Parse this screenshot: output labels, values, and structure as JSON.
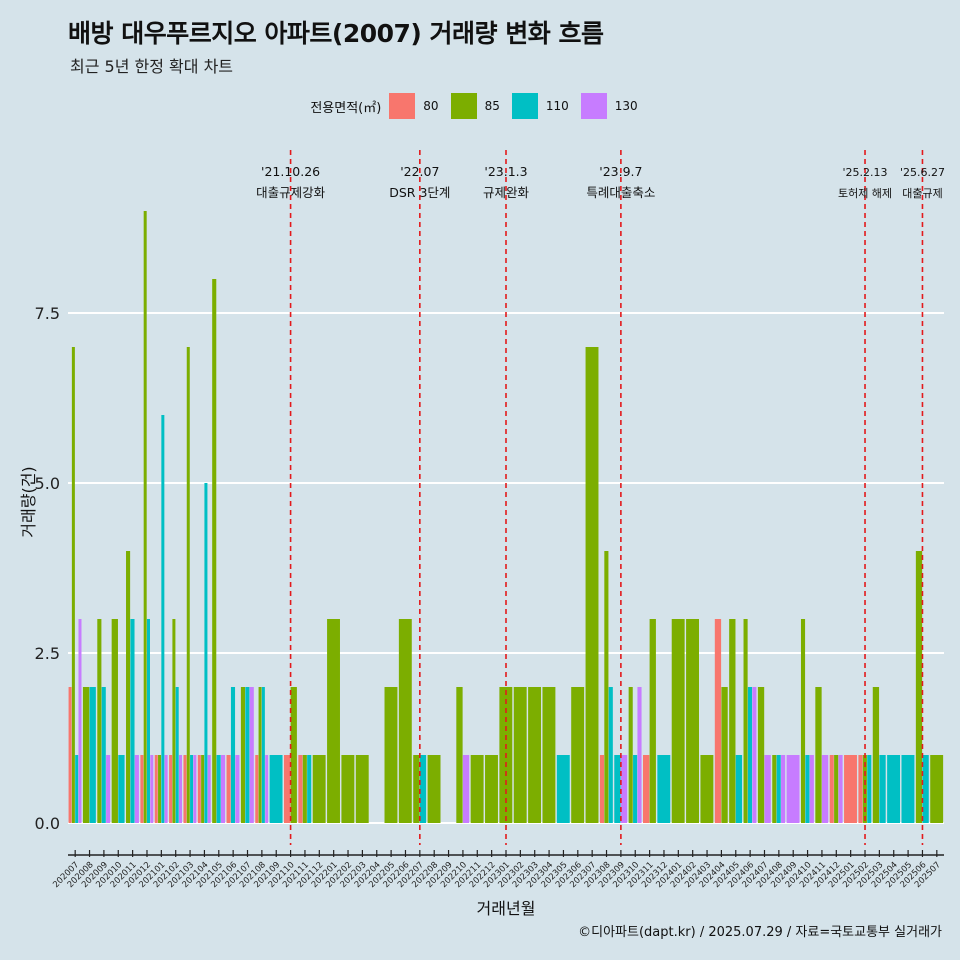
{
  "title": "배방 대우푸르지오 아파트(2007) 거래량 변화 흐름",
  "subtitle": "최근 5년 한정 확대 차트",
  "caption": "©디아파트(dapt.kr) / 2025.07.29 / 자료=국토교통부 실거래가",
  "legend": {
    "title": "전용면적(㎡)",
    "items": [
      {
        "label": "80",
        "color": "#f8766d"
      },
      {
        "label": "85",
        "color": "#7cae00"
      },
      {
        "label": "110",
        "color": "#00bfc4"
      },
      {
        "label": "130",
        "color": "#c77cff"
      }
    ]
  },
  "chart_data": {
    "type": "bar",
    "xlabel": "거래년월",
    "ylabel": "거래량(건)",
    "ylim": [
      0,
      9
    ],
    "yticks": [
      0.0,
      2.5,
      5.0,
      7.5
    ],
    "ytick_labels": [
      "0.0",
      "2.5",
      "5.0",
      "7.5"
    ],
    "grid": true,
    "legend_position": "top",
    "areas": [
      "80",
      "85",
      "110",
      "130"
    ],
    "categories": [
      "202007",
      "202008",
      "202009",
      "202010",
      "202011",
      "202012",
      "202101",
      "202102",
      "202103",
      "202104",
      "202105",
      "202106",
      "202107",
      "202108",
      "202109",
      "202110",
      "202111",
      "202112",
      "202201",
      "202202",
      "202203",
      "202204",
      "202205",
      "202206",
      "202207",
      "202208",
      "202209",
      "202210",
      "202211",
      "202212",
      "202301",
      "202302",
      "202303",
      "202304",
      "202305",
      "202306",
      "202307",
      "202308",
      "202309",
      "202310",
      "202311",
      "202312",
      "202401",
      "202402",
      "202403",
      "202404",
      "202405",
      "202406",
      "202407",
      "202408",
      "202409",
      "202410",
      "202411",
      "202412",
      "202501",
      "202502",
      "202503",
      "202504",
      "202505",
      "202506",
      "202507"
    ],
    "series": [
      {
        "name": "80",
        "values": [
          2,
          0,
          0,
          0,
          0,
          1,
          1,
          1,
          1,
          1,
          0,
          1,
          0,
          1,
          0,
          1,
          1,
          0,
          0,
          0,
          0,
          0,
          0,
          0,
          0,
          0,
          0,
          0,
          0,
          0,
          0,
          0,
          0,
          0,
          0,
          0,
          0,
          1,
          0,
          0,
          1,
          0,
          0,
          0,
          0,
          3,
          0,
          0,
          0,
          0,
          0,
          0,
          0,
          1,
          1,
          1,
          0,
          0,
          0,
          0,
          0
        ]
      },
      {
        "name": "85",
        "values": [
          7,
          2,
          3,
          3,
          4,
          9,
          1,
          3,
          7,
          1,
          8,
          0,
          2,
          2,
          0,
          2,
          1,
          1,
          3,
          1,
          1,
          0,
          2,
          3,
          1,
          1,
          0,
          2,
          1,
          1,
          2,
          2,
          2,
          2,
          0,
          2,
          7,
          4,
          0,
          2,
          3,
          0,
          3,
          3,
          1,
          2,
          3,
          3,
          2,
          1,
          0,
          3,
          2,
          1,
          0,
          1,
          2,
          0,
          0,
          4,
          1
        ]
      },
      {
        "name": "110",
        "values": [
          1,
          2,
          2,
          1,
          3,
          3,
          6,
          2,
          1,
          5,
          1,
          2,
          2,
          2,
          1,
          0,
          1,
          0,
          0,
          0,
          0,
          0,
          0,
          0,
          1,
          0,
          0,
          0,
          0,
          0,
          0,
          0,
          0,
          0,
          1,
          0,
          0,
          2,
          1,
          1,
          0,
          1,
          0,
          0,
          0,
          0,
          1,
          2,
          0,
          1,
          0,
          1,
          0,
          0,
          0,
          1,
          1,
          1,
          1,
          1,
          0
        ]
      },
      {
        "name": "130",
        "values": [
          3,
          0,
          1,
          0,
          1,
          1,
          1,
          1,
          1,
          1,
          1,
          1,
          2,
          1,
          0,
          0,
          0,
          0,
          0,
          0,
          0,
          0,
          0,
          0,
          0,
          0,
          0,
          1,
          0,
          0,
          0,
          0,
          0,
          0,
          0,
          0,
          0,
          0,
          1,
          2,
          0,
          0,
          0,
          0,
          0,
          0,
          0,
          2,
          1,
          1,
          1,
          1,
          1,
          1,
          0,
          0,
          0,
          0,
          0,
          0,
          0
        ]
      }
    ],
    "annotations": [
      {
        "date": "'21.10.26",
        "text": "대출규제강화",
        "x": "202110"
      },
      {
        "date": "'22.07",
        "text": "DSR 3단계",
        "x": "202207"
      },
      {
        "date": "'23.1.3",
        "text": "규제완화",
        "x": "202301"
      },
      {
        "date": "'23.9.7",
        "text": "특례대출축소",
        "x": "202309"
      },
      {
        "date": "'25.2.13",
        "text": "토허제 해제",
        "x": "202502"
      },
      {
        "date": "'25.6.27",
        "text": "대출규제",
        "x": "202506"
      }
    ]
  }
}
